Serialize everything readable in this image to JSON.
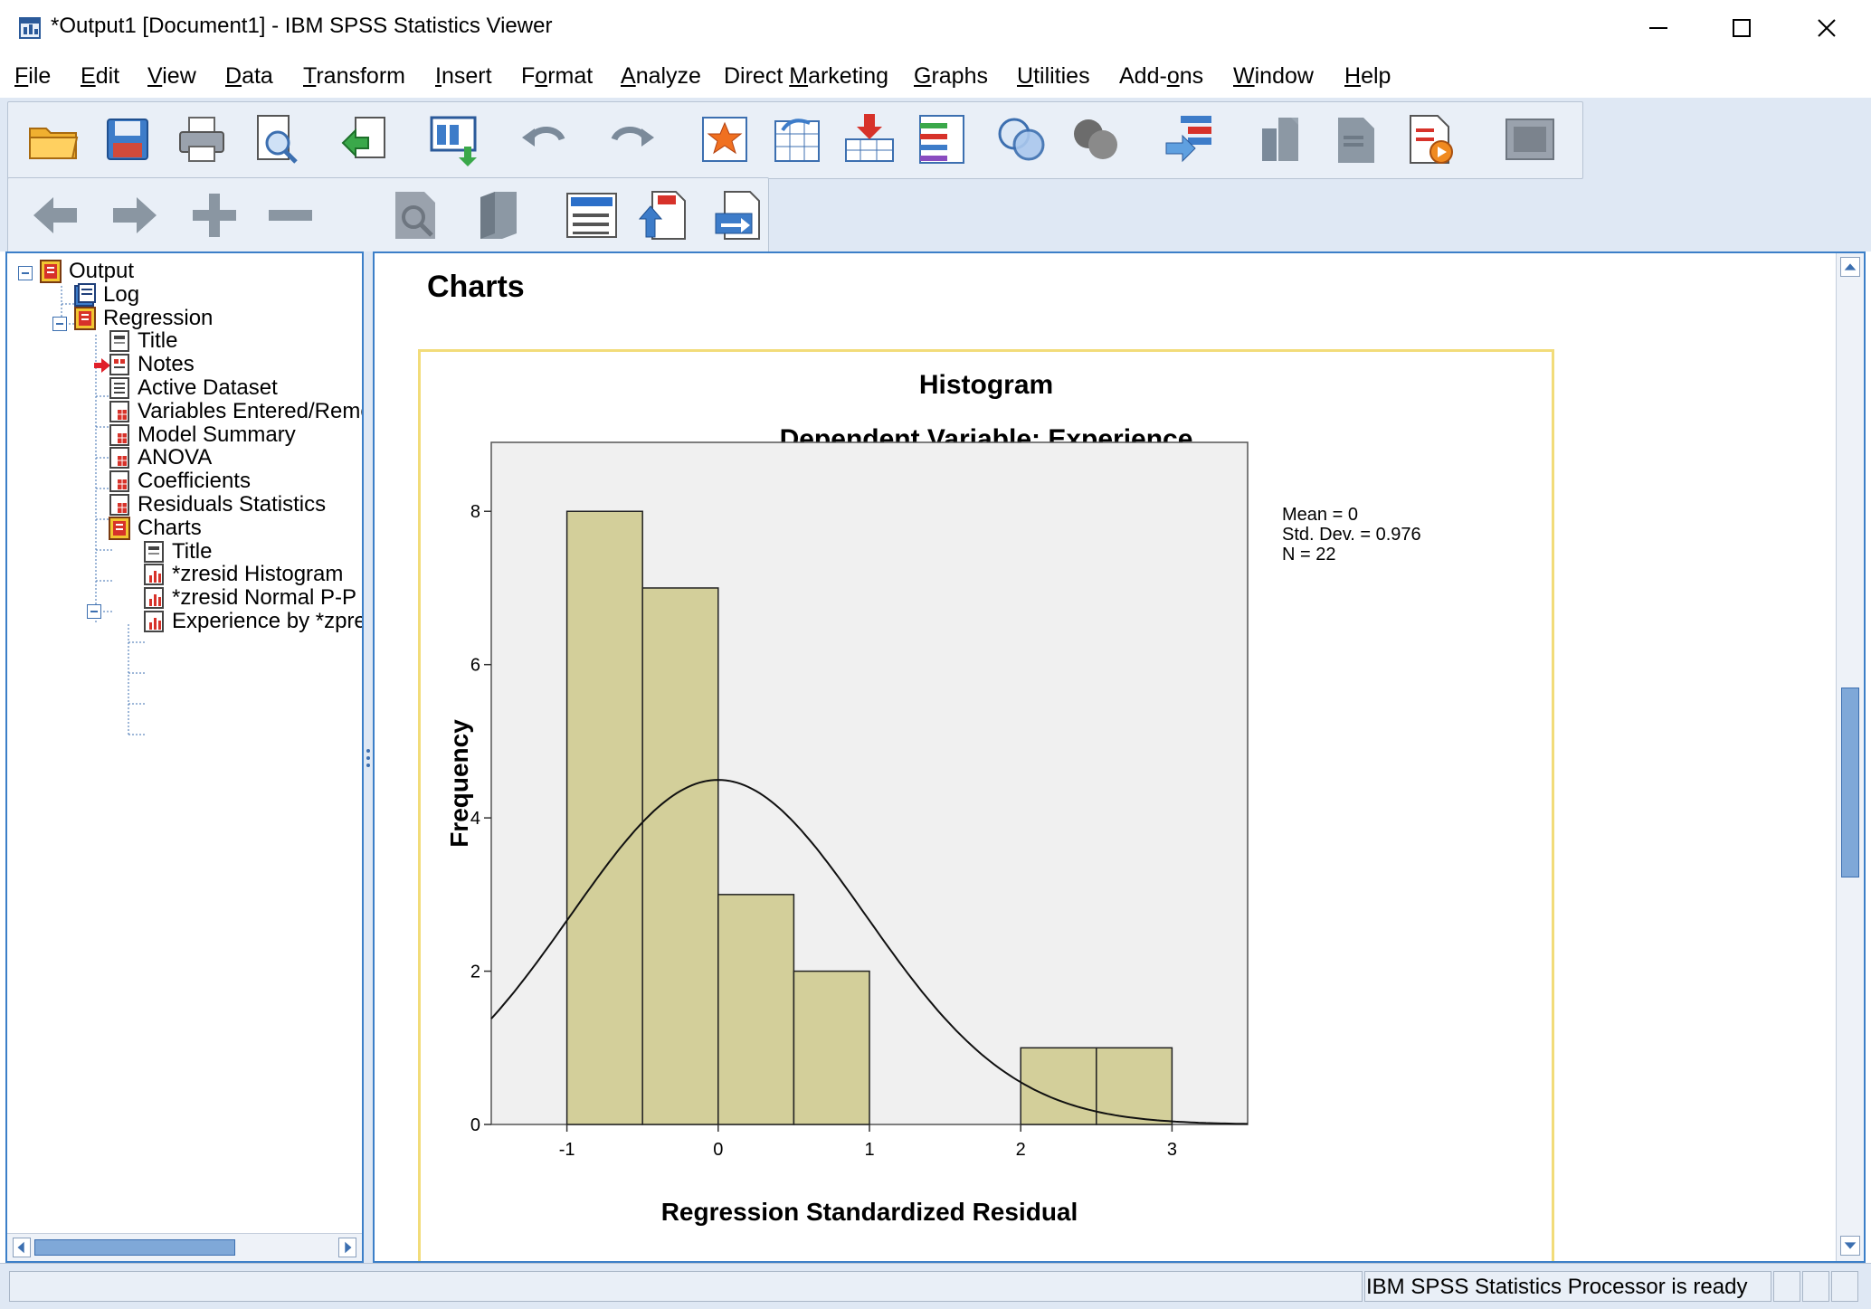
{
  "window": {
    "title": "*Output1 [Document1] - IBM SPSS Statistics Viewer"
  },
  "menu": [
    {
      "label": "File",
      "key": "F"
    },
    {
      "label": "Edit",
      "key": "E"
    },
    {
      "label": "View",
      "key": "V"
    },
    {
      "label": "Data",
      "key": "D"
    },
    {
      "label": "Transform",
      "key": "T"
    },
    {
      "label": "Insert",
      "key": "I"
    },
    {
      "label": "Format",
      "key": "o"
    },
    {
      "label": "Analyze",
      "key": "A"
    },
    {
      "label": "Direct Marketing",
      "key": "M"
    },
    {
      "label": "Graphs",
      "key": "G"
    },
    {
      "label": "Utilities",
      "key": "U"
    },
    {
      "label": "Add-ons",
      "key": "o"
    },
    {
      "label": "Window",
      "key": "W"
    },
    {
      "label": "Help",
      "key": "H"
    }
  ],
  "toolbar1_icons": [
    "open-icon",
    "save-icon",
    "print-icon",
    "print-preview-icon",
    "export-icon",
    "recall-dialog-icon",
    "undo-icon",
    "redo-icon",
    "goto-data-icon",
    "goto-case-icon",
    "goto-variable-icon",
    "variables-icon",
    "use-variable-sets-icon",
    "show-all-variables-icon",
    "designate-window-icon",
    "promote-icon",
    "demote-icon",
    "insert-output-icon",
    "create-edit-autoscript-icon",
    "run-script-icon"
  ],
  "toolbar2_icons": [
    "back-icon",
    "forward-icon",
    "expand-icon",
    "collapse-icon",
    "show-icon",
    "hide-icon",
    "insert-heading-icon",
    "insert-title-icon",
    "insert-text-icon"
  ],
  "outline": {
    "nodes": [
      {
        "label": "Output",
        "icon": "output-book-icon"
      },
      {
        "label": "Log",
        "icon": "log-icon"
      },
      {
        "label": "Regression",
        "icon": "procedure-book-icon"
      },
      {
        "label": "Title",
        "icon": "title-icon"
      },
      {
        "label": "Notes",
        "icon": "notes-icon"
      },
      {
        "label": "Active Dataset",
        "icon": "text-output-icon"
      },
      {
        "label": "Variables Entered/Removed",
        "icon": "pivot-table-icon"
      },
      {
        "label": "Model Summary",
        "icon": "pivot-table-icon"
      },
      {
        "label": "ANOVA",
        "icon": "pivot-table-icon"
      },
      {
        "label": "Coefficients",
        "icon": "pivot-table-icon"
      },
      {
        "label": "Residuals Statistics",
        "icon": "pivot-table-icon"
      },
      {
        "label": "Charts",
        "icon": "procedure-book-icon"
      },
      {
        "label": "Title",
        "icon": "title-icon"
      },
      {
        "label": "*zresid Histogram",
        "icon": "chart-icon"
      },
      {
        "label": "*zresid Normal P-P Plot",
        "icon": "chart-icon"
      },
      {
        "label": "Experience by *zpred",
        "icon": "chart-icon"
      }
    ]
  },
  "content": {
    "section_title": "Charts"
  },
  "chart_data": {
    "type": "bar",
    "title": "Histogram",
    "subtitle": "Dependent Variable: Experience",
    "xlabel": "Regression Standardized Residual",
    "ylabel": "Frequency",
    "bins": [
      {
        "start": -1.0,
        "end": -0.5,
        "count": 8
      },
      {
        "start": -0.5,
        "end": 0.0,
        "count": 7
      },
      {
        "start": 0.0,
        "end": 0.5,
        "count": 3
      },
      {
        "start": 0.5,
        "end": 1.0,
        "count": 2
      },
      {
        "start": 2.0,
        "end": 2.5,
        "count": 1
      },
      {
        "start": 2.5,
        "end": 3.0,
        "count": 1
      }
    ],
    "xlim": [
      -1.5,
      3.5
    ],
    "ylim": [
      0,
      8.9
    ],
    "xticks": [
      -1,
      0,
      1,
      2,
      3
    ],
    "yticks": [
      0,
      2,
      4,
      6,
      8
    ],
    "stats": [
      "Mean = 0",
      "Std. Dev. = 0.976",
      "N = 22"
    ],
    "normal_curve": {
      "mean": 0,
      "sd": 0.976,
      "n": 22,
      "bin_width": 0.5
    },
    "bar_color": "#d3cf9a",
    "plot_background": "#f0f0f0",
    "grid": false
  },
  "status": {
    "text": "IBM SPSS Statistics Processor is ready"
  },
  "colors": {
    "accent": "#3c7fc8",
    "frame": "#f2dc7a"
  }
}
